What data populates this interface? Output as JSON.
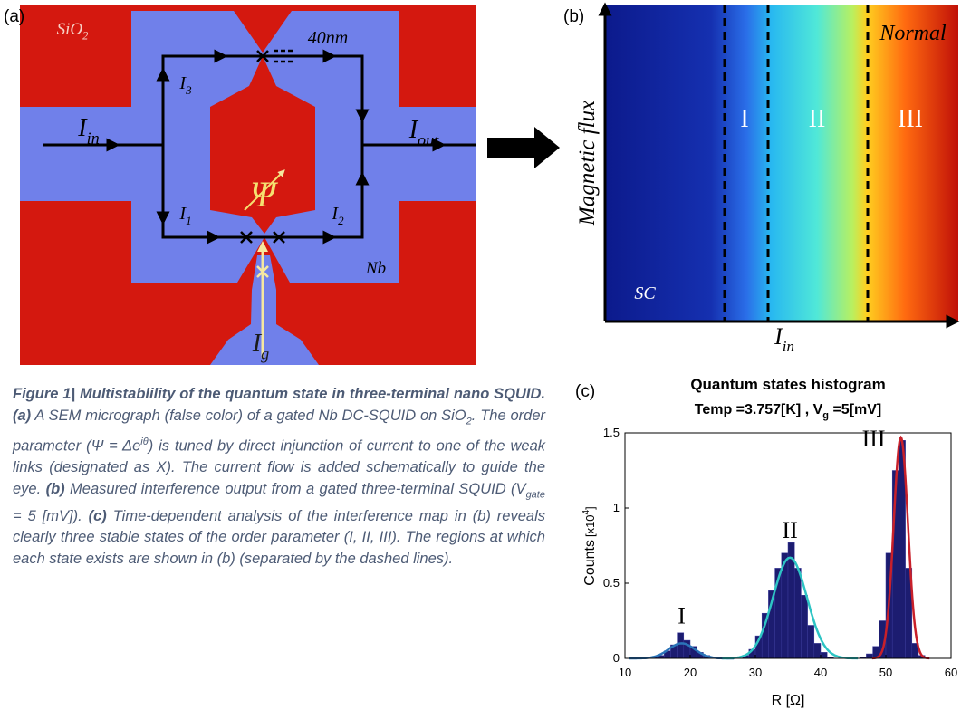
{
  "panel_a": {
    "label": "(a)",
    "substrate": {
      "main": "SiO",
      "sub": "2"
    },
    "width": "40nm",
    "current_in": {
      "main": "I",
      "sub": "in"
    },
    "current_out": {
      "main": "I",
      "sub": "out"
    },
    "branches": [
      {
        "main": "I",
        "sub": "1"
      },
      {
        "main": "I",
        "sub": "2"
      },
      {
        "main": "I",
        "sub": "3"
      }
    ],
    "order_parameter": "Ψ",
    "material": "Nb",
    "gate_current": {
      "main": "I",
      "sub": "g"
    }
  },
  "panel_b": {
    "label": "(b)",
    "y_label": "Magnetic flux",
    "x_label": {
      "main": "I",
      "sub": "in"
    },
    "regions": [
      "SC",
      "I",
      "II",
      "III"
    ],
    "normal": "Normal"
  },
  "chart_data": {
    "type": "histogram",
    "label": "(c)",
    "title": "Quantum states histogram",
    "subtitle": {
      "temp": "Temp =3.757[K] , ",
      "vg_main": "V",
      "vg_sub": "g",
      "vg_value": " =5[mV]"
    },
    "xlabel": "R [Ω]",
    "ylabel": {
      "main": "Counts",
      "prefix": "[x10",
      "exponent": "4",
      "suffix": "]"
    },
    "bins": [
      14,
      15,
      16,
      17,
      18,
      19,
      20,
      21,
      22,
      23,
      24,
      25,
      26,
      27,
      28,
      29,
      30,
      31,
      32,
      33,
      34,
      35,
      36,
      37,
      38,
      39,
      40,
      41,
      42,
      43,
      44,
      45,
      46,
      47,
      48,
      49,
      50,
      51,
      52,
      53,
      54,
      55,
      56
    ],
    "counts": [
      0.01,
      0.02,
      0.05,
      0.09,
      0.17,
      0.12,
      0.08,
      0.04,
      0.02,
      0.01,
      0,
      0,
      0,
      0,
      0.02,
      0.06,
      0.15,
      0.3,
      0.45,
      0.6,
      0.7,
      0.77,
      0.6,
      0.42,
      0.22,
      0.1,
      0.04,
      0.01,
      0,
      0,
      0,
      0,
      0.01,
      0.03,
      0.08,
      0.25,
      0.7,
      1.25,
      1.45,
      0.6,
      0.1,
      0.02
    ],
    "color": "#1c1c70",
    "fits": [
      {
        "label": "I",
        "mean": 18.7,
        "amplitude": 0.1,
        "sigma": 2.0,
        "color": "#2b74b8"
      },
      {
        "label": "II",
        "mean": 35.3,
        "amplitude": 0.67,
        "sigma": 2.6,
        "color": "#2ec4c4"
      },
      {
        "label": "III",
        "mean": 52.3,
        "amplitude": 1.47,
        "sigma": 1.1,
        "color": "#c8202a"
      }
    ],
    "xlim": [
      10,
      60
    ],
    "ylim": [
      0,
      1.5
    ],
    "xticks": [
      10,
      20,
      30,
      40,
      50,
      60
    ],
    "yticks": [
      0,
      0.5,
      1,
      1.5
    ]
  },
  "caption": {
    "runs": [
      {
        "text": "Figure 1| Multistablility of the quantum state in three-terminal nano SQUID. (a)",
        "style": "bold"
      },
      {
        "text": " A SEM micrograph (false color) of a gated Nb DC-SQUID on SiO",
        "style": "normal"
      },
      {
        "text": "2",
        "style": "sub"
      },
      {
        "text": ". The order parameter (Ψ = Δe",
        "style": "normal"
      },
      {
        "text": "iθ",
        "style": "sup"
      },
      {
        "text": ") is tuned by direct injunction of current to one of the weak links (designated as X). The current flow is added schematically to guide the eye. ",
        "style": "normal"
      },
      {
        "text": "(b)",
        "style": "bold"
      },
      {
        "text": " Measured interference output from a gated three-terminal SQUID (V",
        "style": "normal"
      },
      {
        "text": "gate",
        "style": "sub"
      },
      {
        "text": " = 5 [mV]). ",
        "style": "normal"
      },
      {
        "text": "(c)",
        "style": "bold"
      },
      {
        "text": " Time-dependent analysis of the interference map in (b) reveals clearly three stable states of the order parameter (I, II, III). The regions at which each state exists are shown in (b) (separated by the dashed lines).",
        "style": "normal"
      }
    ]
  }
}
